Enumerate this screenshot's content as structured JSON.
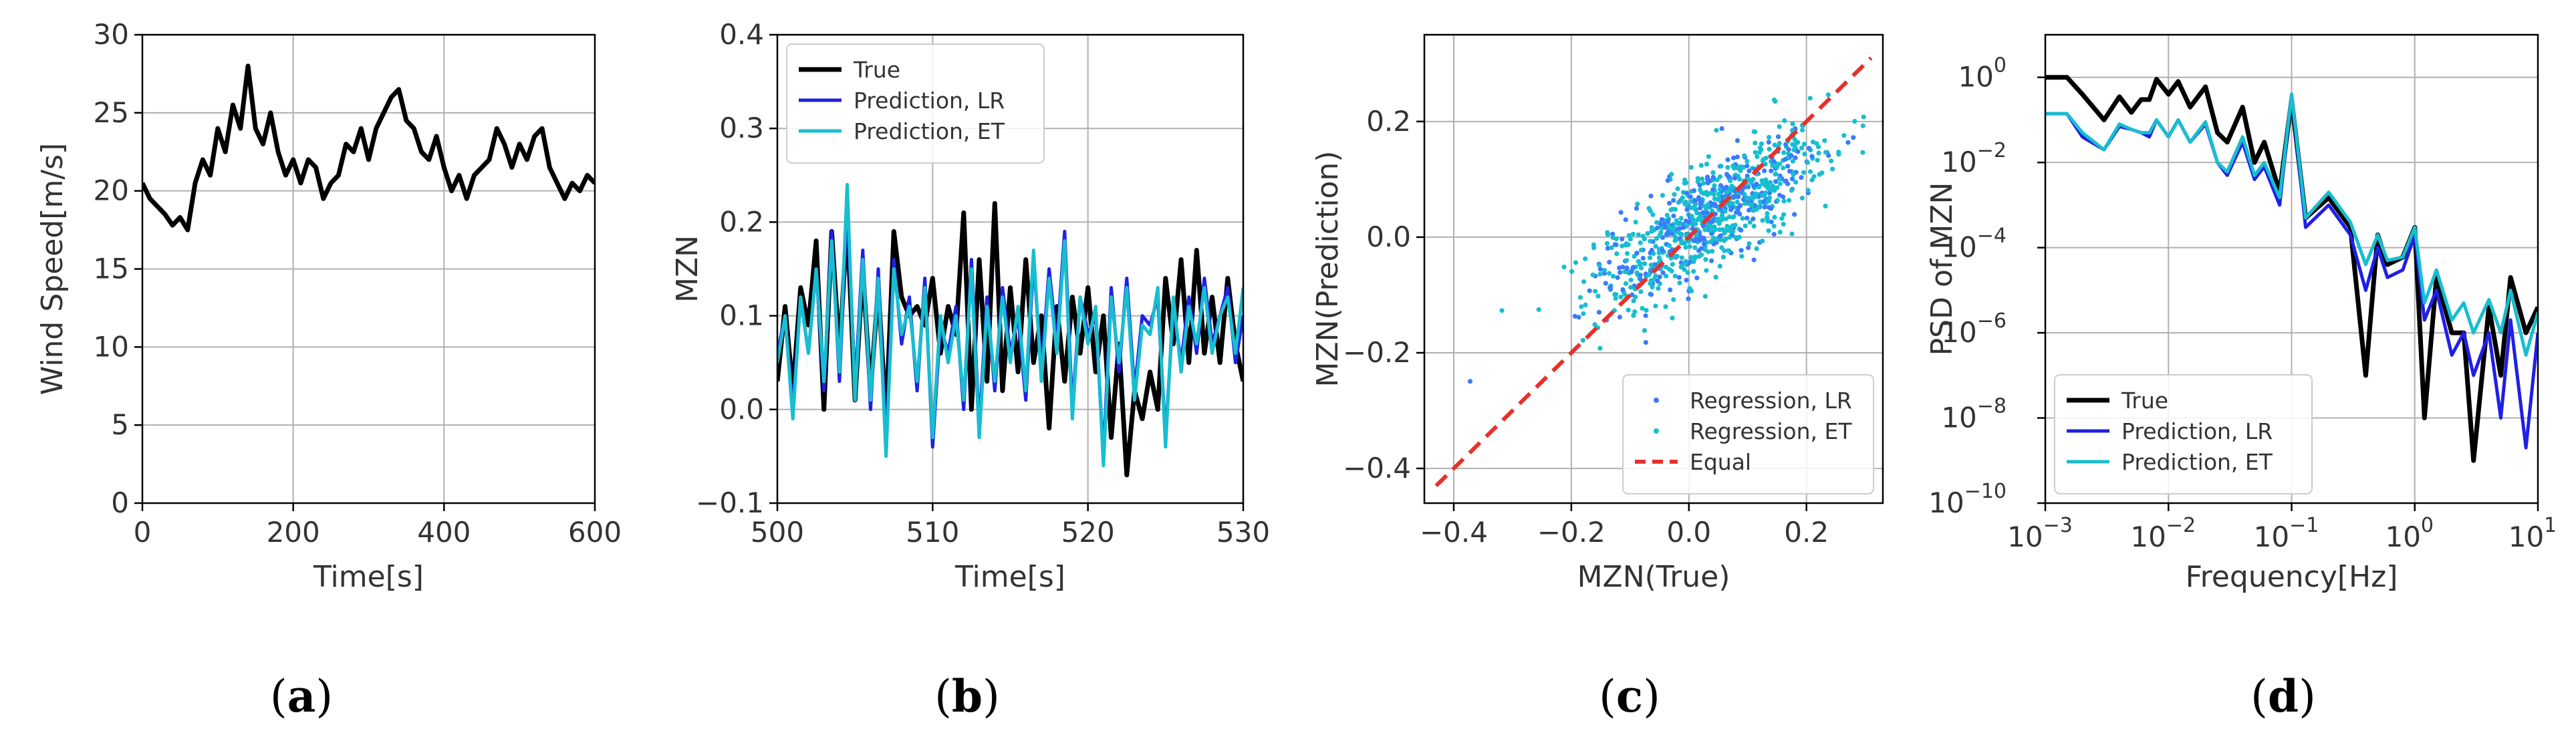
{
  "colors": {
    "true": "#000000",
    "lr": "#1f1fe6",
    "et": "#17becf",
    "equal": "#e8302a",
    "grid": "#b0b0b0"
  },
  "chart_data": [
    {
      "id": "a",
      "type": "line",
      "panel_label_open": "(",
      "panel_label": "a",
      "panel_label_close": ")",
      "xlabel": "Time[s]",
      "ylabel": "Wind Speed[m/s]",
      "xlim": [
        0,
        600
      ],
      "ylim": [
        0,
        30
      ],
      "grid": true,
      "xticks": [
        0,
        200,
        400,
        600
      ],
      "xtick_labels": [
        "0",
        "200",
        "400",
        "600"
      ],
      "yticks": [
        0,
        5,
        10,
        15,
        20,
        25,
        30
      ],
      "ytick_labels": [
        "0",
        "5",
        "10",
        "15",
        "20",
        "25",
        "30"
      ],
      "series": [
        {
          "name": "Wind speed",
          "color": "#000000",
          "x": [
            0,
            10,
            20,
            30,
            40,
            50,
            60,
            70,
            80,
            90,
            100,
            110,
            120,
            130,
            140,
            150,
            160,
            170,
            180,
            190,
            200,
            210,
            220,
            230,
            240,
            250,
            260,
            270,
            280,
            290,
            300,
            310,
            320,
            330,
            340,
            350,
            360,
            370,
            380,
            390,
            400,
            410,
            420,
            430,
            440,
            450,
            460,
            470,
            480,
            490,
            500,
            510,
            520,
            530,
            540,
            550,
            560,
            570,
            580,
            590,
            600
          ],
          "y": [
            20.5,
            19.5,
            19,
            18.5,
            17.8,
            18.3,
            17.5,
            20.5,
            22,
            21,
            24,
            22.5,
            25.5,
            24,
            28,
            24,
            23,
            25,
            22.5,
            21,
            22,
            20.5,
            22,
            21.5,
            19.5,
            20.5,
            21,
            23,
            22.5,
            24,
            22,
            24,
            25,
            26,
            26.5,
            24.5,
            24,
            22.5,
            22,
            23.5,
            21.5,
            20,
            21,
            19.5,
            21,
            21.5,
            22,
            24,
            23,
            21.5,
            23,
            22,
            23.5,
            24,
            21.5,
            20.5,
            19.5,
            20.5,
            20,
            21,
            20.5
          ]
        }
      ]
    },
    {
      "id": "b",
      "type": "line",
      "panel_label_open": "(",
      "panel_label": "b",
      "panel_label_close": ")",
      "xlabel": "Time[s]",
      "ylabel": "MZN",
      "xlim": [
        500,
        530
      ],
      "ylim": [
        -0.1,
        0.4
      ],
      "grid": true,
      "xticks": [
        500,
        510,
        520,
        530
      ],
      "xtick_labels": [
        "500",
        "510",
        "520",
        "530"
      ],
      "yticks": [
        -0.1,
        0.0,
        0.1,
        0.2,
        0.3,
        0.4
      ],
      "ytick_labels": [
        "−0.1",
        "0.0",
        "0.1",
        "0.2",
        "0.3",
        "0.4"
      ],
      "legend": {
        "position": "top-left",
        "entries": [
          "True",
          "Prediction, LR",
          "Prediction, ET"
        ]
      },
      "series": [
        {
          "name": "True",
          "color": "#000000",
          "x": [
            500,
            500.5,
            501,
            501.5,
            502,
            502.5,
            503,
            503.5,
            504,
            504.5,
            505,
            505.5,
            506,
            506.5,
            507,
            507.5,
            508,
            508.5,
            509,
            509.5,
            510,
            510.5,
            511,
            511.5,
            512,
            512.5,
            513,
            513.5,
            514,
            514.5,
            515,
            515.5,
            516,
            516.5,
            517,
            517.5,
            518,
            518.5,
            519,
            519.5,
            520,
            520.5,
            521,
            521.5,
            522,
            522.5,
            523,
            523.5,
            524,
            524.5,
            525,
            525.5,
            526,
            526.5,
            527,
            527.5,
            528,
            528.5,
            529,
            529.5,
            530
          ],
          "y": [
            0.03,
            0.11,
            0.02,
            0.13,
            0.09,
            0.18,
            0.0,
            0.19,
            0.06,
            0.2,
            0.01,
            0.15,
            0.02,
            0.13,
            -0.01,
            0.19,
            0.12,
            0.1,
            0.11,
            0.09,
            0.14,
            0.06,
            0.11,
            0.08,
            0.21,
            0.0,
            0.16,
            0.03,
            0.22,
            0.02,
            0.13,
            0.04,
            0.16,
            0.05,
            0.1,
            -0.02,
            0.11,
            0.03,
            0.12,
            0.06,
            0.13,
            0.04,
            0.1,
            -0.03,
            0.07,
            -0.07,
            0.02,
            -0.01,
            0.04,
            0.0,
            0.14,
            0.07,
            0.16,
            0.05,
            0.17,
            0.06,
            0.12,
            0.05,
            0.14,
            0.07,
            0.03
          ]
        },
        {
          "name": "Prediction, LR",
          "color": "#1f1fe6",
          "x": [
            500,
            500.5,
            501,
            501.5,
            502,
            502.5,
            503,
            503.5,
            504,
            504.5,
            505,
            505.5,
            506,
            506.5,
            507,
            507.5,
            508,
            508.5,
            509,
            509.5,
            510,
            510.5,
            511,
            511.5,
            512,
            512.5,
            513,
            513.5,
            514,
            514.5,
            515,
            515.5,
            516,
            516.5,
            517,
            517.5,
            518,
            518.5,
            519,
            519.5,
            520,
            520.5,
            521,
            521.5,
            522,
            522.5,
            523,
            523.5,
            524,
            524.5,
            525,
            525.5,
            526,
            526.5,
            527,
            527.5,
            528,
            528.5,
            529,
            529.5,
            530
          ],
          "y": [
            0.06,
            0.1,
            0.0,
            0.12,
            0.06,
            0.15,
            0.02,
            0.19,
            0.03,
            0.22,
            0.02,
            0.17,
            0.0,
            0.15,
            -0.04,
            0.16,
            0.07,
            0.12,
            0.02,
            0.14,
            -0.04,
            0.09,
            0.06,
            0.11,
            0.0,
            0.16,
            -0.02,
            0.12,
            0.02,
            0.13,
            0.06,
            0.1,
            0.01,
            0.16,
            0.04,
            0.15,
            0.07,
            0.19,
            0.0,
            0.12,
            0.08,
            0.1,
            -0.05,
            0.13,
            0.04,
            0.14,
            0.02,
            0.1,
            0.09,
            0.12,
            -0.03,
            0.11,
            0.05,
            0.12,
            0.06,
            0.14,
            0.07,
            0.1,
            0.13,
            0.05,
            0.1
          ]
        },
        {
          "name": "Prediction, ET",
          "color": "#17becf",
          "x": [
            500,
            500.5,
            501,
            501.5,
            502,
            502.5,
            503,
            503.5,
            504,
            504.5,
            505,
            505.5,
            506,
            506.5,
            507,
            507.5,
            508,
            508.5,
            509,
            509.5,
            510,
            510.5,
            511,
            511.5,
            512,
            512.5,
            513,
            513.5,
            514,
            514.5,
            515,
            515.5,
            516,
            516.5,
            517,
            517.5,
            518,
            518.5,
            519,
            519.5,
            520,
            520.5,
            521,
            521.5,
            522,
            522.5,
            523,
            523.5,
            524,
            524.5,
            525,
            525.5,
            526,
            526.5,
            527,
            527.5,
            528,
            528.5,
            529,
            529.5,
            530
          ],
          "y": [
            0.05,
            0.1,
            -0.01,
            0.12,
            0.06,
            0.15,
            0.03,
            0.18,
            0.04,
            0.24,
            0.01,
            0.16,
            0.01,
            0.14,
            -0.05,
            0.15,
            0.08,
            0.11,
            0.03,
            0.13,
            -0.03,
            0.1,
            0.05,
            0.1,
            0.01,
            0.15,
            -0.03,
            0.11,
            0.03,
            0.12,
            0.05,
            0.11,
            0.02,
            0.17,
            0.03,
            0.14,
            0.06,
            0.18,
            -0.01,
            0.12,
            0.07,
            0.11,
            -0.06,
            0.12,
            0.05,
            0.13,
            0.01,
            0.09,
            0.08,
            0.13,
            -0.04,
            0.12,
            0.04,
            0.11,
            0.07,
            0.13,
            0.06,
            0.1,
            0.12,
            0.06,
            0.13
          ]
        }
      ]
    },
    {
      "id": "c",
      "type": "scatter",
      "panel_label_open": "(",
      "panel_label": "c",
      "panel_label_close": ")",
      "xlabel": "MZN(True)",
      "ylabel": "MZN(Prediction)",
      "xlim": [
        -0.45,
        0.33
      ],
      "ylim": [
        -0.46,
        0.35
      ],
      "grid": true,
      "xticks": [
        -0.4,
        -0.2,
        0.0,
        0.2
      ],
      "xtick_labels": [
        "−0.4",
        "−0.2",
        "0.0",
        "0.2"
      ],
      "yticks": [
        -0.4,
        -0.2,
        0.0,
        0.2
      ],
      "ytick_labels": [
        "−0.4",
        "−0.2",
        "0.0",
        "0.2"
      ],
      "legend": {
        "position": "lower-right",
        "entries": [
          "Regression, LR",
          "Regression, ET",
          "Equal"
        ]
      },
      "cloud_model": {
        "center": [
          0.03,
          0.03
        ],
        "slope": 0.6,
        "x_sd": 0.1,
        "residual_sd": 0.045,
        "n_points": 900
      },
      "series": [
        {
          "name": "Regression, LR",
          "color": "#3a7bff",
          "marker": "dot"
        },
        {
          "name": "Regression, ET",
          "color": "#17becf",
          "marker": "dot"
        },
        {
          "name": "Equal",
          "color": "#e8302a",
          "style": "dashed",
          "x": [
            -0.43,
            0.31
          ],
          "y": [
            -0.43,
            0.31
          ]
        }
      ]
    },
    {
      "id": "d",
      "type": "line",
      "scale": "log-log",
      "panel_label_open": "(",
      "panel_label": "d",
      "panel_label_close": ")",
      "xlabel": "Frequency[Hz]",
      "ylabel": "PSD of MZN",
      "xlim": [
        0.001,
        10
      ],
      "ylim": [
        1e-10,
        10
      ],
      "grid": true,
      "xticks_exp": [
        -3,
        -2,
        -1,
        0,
        1
      ],
      "tick_base": "10",
      "yticks_exp": [
        -10,
        -8,
        -6,
        -4,
        -2,
        0
      ],
      "legend": {
        "position": "lower-left",
        "entries": [
          "True",
          "Prediction, LR",
          "Prediction, ET"
        ]
      },
      "series": [
        {
          "name": "True",
          "color": "#000000",
          "x": [
            0.001,
            0.0015,
            0.002,
            0.003,
            0.004,
            0.005,
            0.006,
            0.007,
            0.008,
            0.01,
            0.012,
            0.015,
            0.02,
            0.025,
            0.03,
            0.04,
            0.05,
            0.06,
            0.08,
            0.1,
            0.13,
            0.2,
            0.3,
            0.4,
            0.5,
            0.6,
            0.8,
            1,
            1.2,
            1.5,
            2,
            2.5,
            3,
            4,
            5,
            6,
            8,
            10
          ],
          "y": [
            1,
            1,
            0.4,
            0.1,
            0.35,
            0.15,
            0.3,
            0.3,
            0.9,
            0.4,
            0.8,
            0.2,
            0.6,
            0.05,
            0.03,
            0.2,
            0.01,
            0.03,
            0.002,
            0.3,
            0.0005,
            0.0015,
            0.0003,
            1e-07,
            0.0002,
            4e-05,
            6e-05,
            0.0003,
            1e-08,
            2e-05,
            1e-06,
            1e-06,
            1e-09,
            4e-06,
            1e-07,
            2e-05,
            1e-06,
            4e-06
          ]
        },
        {
          "name": "Prediction, LR",
          "color": "#1f1fe6",
          "x": [
            0.001,
            0.0015,
            0.002,
            0.003,
            0.004,
            0.005,
            0.006,
            0.007,
            0.008,
            0.01,
            0.012,
            0.015,
            0.02,
            0.025,
            0.03,
            0.04,
            0.05,
            0.06,
            0.08,
            0.1,
            0.13,
            0.2,
            0.3,
            0.4,
            0.5,
            0.6,
            0.8,
            1,
            1.2,
            1.5,
            2,
            2.5,
            3,
            4,
            5,
            6,
            8,
            10
          ],
          "y": [
            0.14,
            0.14,
            0.04,
            0.02,
            0.07,
            0.06,
            0.05,
            0.04,
            0.1,
            0.04,
            0.1,
            0.03,
            0.08,
            0.01,
            0.005,
            0.03,
            0.004,
            0.008,
            0.001,
            0.4,
            0.0003,
            0.001,
            0.0002,
            1e-05,
            0.0001,
            2e-05,
            3e-05,
            0.0002,
            2e-06,
            1e-05,
            3e-07,
            1e-06,
            1e-07,
            1e-06,
            1e-08,
            2e-06,
            2e-09,
            1e-06
          ]
        },
        {
          "name": "Prediction, ET",
          "color": "#17becf",
          "x": [
            0.001,
            0.0015,
            0.002,
            0.003,
            0.004,
            0.005,
            0.006,
            0.007,
            0.008,
            0.01,
            0.012,
            0.015,
            0.02,
            0.025,
            0.03,
            0.04,
            0.05,
            0.06,
            0.08,
            0.1,
            0.13,
            0.2,
            0.3,
            0.4,
            0.5,
            0.6,
            0.8,
            1,
            1.2,
            1.5,
            2,
            2.5,
            3,
            4,
            5,
            6,
            8,
            10
          ],
          "y": [
            0.14,
            0.14,
            0.05,
            0.02,
            0.08,
            0.06,
            0.05,
            0.05,
            0.1,
            0.04,
            0.1,
            0.03,
            0.09,
            0.01,
            0.006,
            0.04,
            0.005,
            0.01,
            0.0015,
            0.4,
            0.0005,
            0.002,
            0.0004,
            4e-05,
            0.0002,
            5e-05,
            6e-05,
            0.0003,
            5e-06,
            3e-05,
            2e-06,
            5e-06,
            1e-06,
            6e-06,
            1e-06,
            1e-05,
            3e-07,
            3e-06
          ]
        }
      ]
    }
  ]
}
